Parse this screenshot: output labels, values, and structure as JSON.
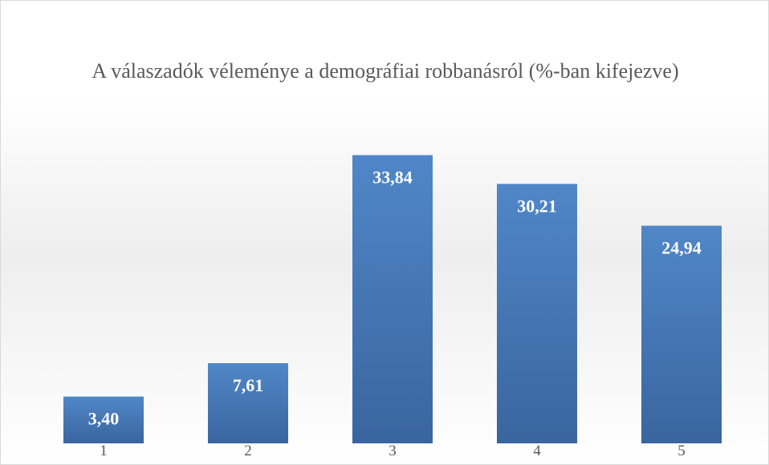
{
  "chart_data": {
    "type": "bar",
    "title": "A válaszadók véleménye a demográfiai robbanásról (%-ban kifejezve)",
    "categories": [
      "1",
      "2",
      "3",
      "4",
      "5"
    ],
    "values": [
      3.4,
      7.61,
      33.84,
      30.21,
      24.94
    ],
    "value_labels": [
      "3,40",
      "7,61",
      "33,84",
      "30,21",
      "24,94"
    ],
    "color": "#4a7ab8",
    "ylim": [
      -2.5,
      35
    ]
  }
}
